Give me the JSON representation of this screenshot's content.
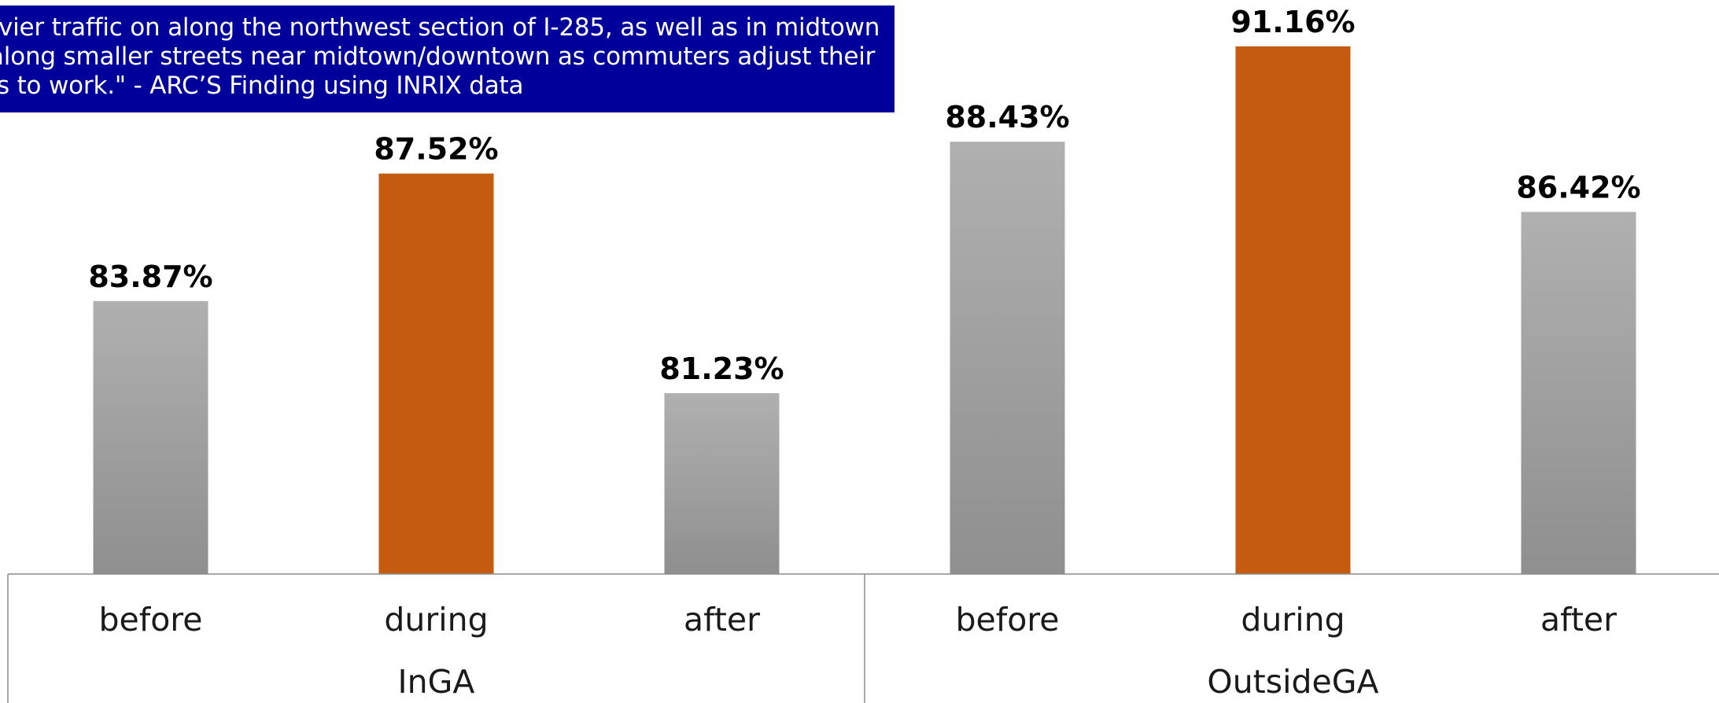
{
  "callout": {
    "lines": [
      "vier traffic on along the northwest section of I-285, as well as in midtown",
      "along smaller streets near midtown/downtown as commuters adjust their",
      "s to work.\" - ARC’S Finding using INRIX data"
    ]
  },
  "chart_data": {
    "type": "bar",
    "title": "",
    "xlabel": "",
    "ylabel": "",
    "groups": [
      {
        "name": "InGA",
        "bars": [
          {
            "category": "before",
            "value": 83.87,
            "label": "83.87%",
            "color": "#a6a6a6"
          },
          {
            "category": "during",
            "value": 87.52,
            "label": "87.52%",
            "color": "#c55a11"
          },
          {
            "category": "after",
            "value": 81.23,
            "label": "81.23%",
            "color": "#a6a6a6"
          }
        ]
      },
      {
        "name": "OutsideGA",
        "bars": [
          {
            "category": "before",
            "value": 88.43,
            "label": "88.43%",
            "color": "#a6a6a6"
          },
          {
            "category": "during",
            "value": 91.16,
            "label": "91.16%",
            "color": "#c55a11"
          },
          {
            "category": "after",
            "value": 86.42,
            "label": "86.42%",
            "color": "#a6a6a6"
          }
        ]
      }
    ],
    "highlight_color": "#c55a11",
    "base_color": "#a6a6a6",
    "grid": false,
    "legend": "none"
  }
}
